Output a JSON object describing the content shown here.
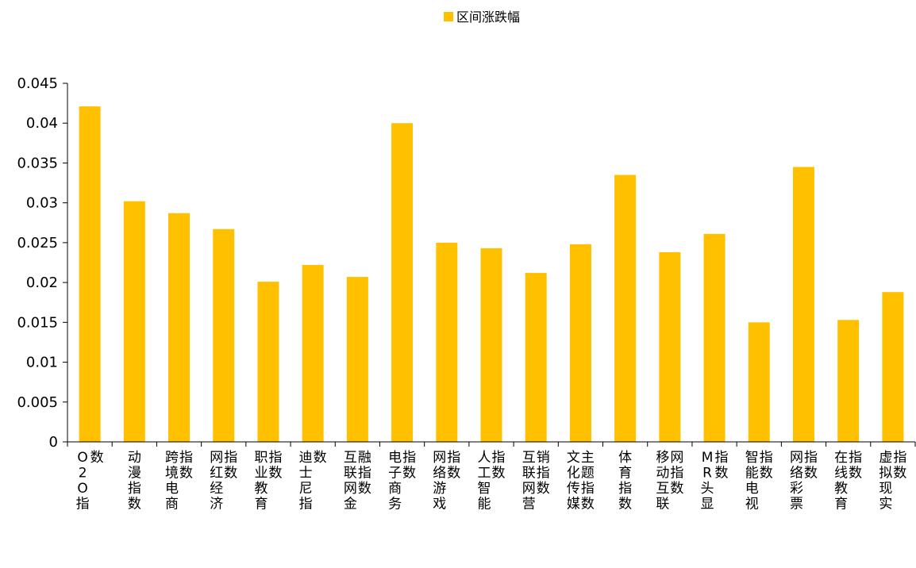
{
  "chart_data": {
    "type": "bar",
    "title": "",
    "xlabel": "",
    "ylabel": "",
    "legend": {
      "position": "top",
      "label": "区间涨跌幅"
    },
    "grid": false,
    "ylim": [
      0,
      0.045
    ],
    "yticks": [
      "0",
      "0.005",
      "0.01",
      "0.015",
      "0.02",
      "0.025",
      "0.03",
      "0.035",
      "0.04",
      "0.045"
    ],
    "colors": {
      "bar": "#FFC000",
      "axis": "#000000"
    },
    "categories": [
      "O2O指数",
      "动漫指数",
      "跨境电商指数",
      "网红经济指数",
      "职业教育指数",
      "迪士尼指数",
      "互联网金融指数",
      "电子商务指数",
      "网络游戏指数",
      "人工智能指数",
      "互联网营销指数",
      "文化传媒主题指数",
      "体育指数",
      "移动互联网指数",
      "MR头显指数",
      "智能电视指数",
      "网络彩票指数",
      "在线教育指数",
      "虚拟现实指数"
    ],
    "series": [
      {
        "name": "区间涨跌幅",
        "values": [
          0.0421,
          0.0302,
          0.0287,
          0.0267,
          0.0201,
          0.0222,
          0.0207,
          0.04,
          0.025,
          0.0243,
          0.0212,
          0.0248,
          0.0335,
          0.0238,
          0.0261,
          0.015,
          0.0345,
          0.0153,
          0.0188
        ]
      }
    ]
  }
}
